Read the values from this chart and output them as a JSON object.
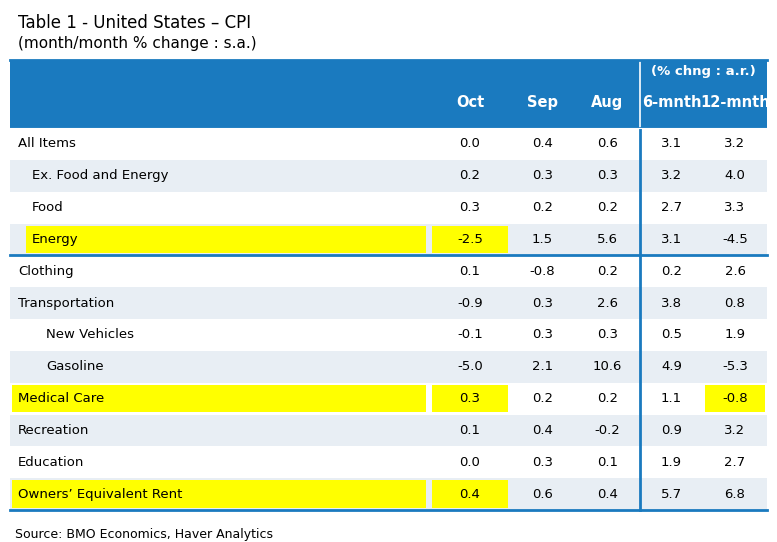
{
  "title_line1": "Table 1 - United States – CPI",
  "title_line2": "(month/month % change : s.a.)",
  "source": "Source: BMO Economics, Haver Analytics",
  "header_bg": "#1a7abf",
  "subheader_text": "(% chng : a.r.)",
  "col_headers": [
    "Oct",
    "Sep",
    "Aug",
    "6-mnth",
    "12-mnth"
  ],
  "rows": [
    {
      "label": "All Items",
      "indent": 0,
      "values": [
        "0.0",
        "0.4",
        "0.6",
        "3.1",
        "3.2"
      ],
      "highlight_label": false,
      "highlight_cells": []
    },
    {
      "label": "Ex. Food and Energy",
      "indent": 1,
      "values": [
        "0.2",
        "0.3",
        "0.3",
        "3.2",
        "4.0"
      ],
      "highlight_label": false,
      "highlight_cells": []
    },
    {
      "label": "Food",
      "indent": 1,
      "values": [
        "0.3",
        "0.2",
        "0.2",
        "2.7",
        "3.3"
      ],
      "highlight_label": false,
      "highlight_cells": []
    },
    {
      "label": "Energy",
      "indent": 1,
      "values": [
        "-2.5",
        "1.5",
        "5.6",
        "3.1",
        "-4.5"
      ],
      "highlight_label": true,
      "highlight_cells": [
        0
      ]
    },
    {
      "label": "Clothing",
      "indent": 0,
      "values": [
        "0.1",
        "-0.8",
        "0.2",
        "0.2",
        "2.6"
      ],
      "highlight_label": false,
      "highlight_cells": []
    },
    {
      "label": "Transportation",
      "indent": 0,
      "values": [
        "-0.9",
        "0.3",
        "2.6",
        "3.8",
        "0.8"
      ],
      "highlight_label": false,
      "highlight_cells": []
    },
    {
      "label": "New Vehicles",
      "indent": 2,
      "values": [
        "-0.1",
        "0.3",
        "0.3",
        "0.5",
        "1.9"
      ],
      "highlight_label": false,
      "highlight_cells": []
    },
    {
      "label": "Gasoline",
      "indent": 2,
      "values": [
        "-5.0",
        "2.1",
        "10.6",
        "4.9",
        "-5.3"
      ],
      "highlight_label": false,
      "highlight_cells": []
    },
    {
      "label": "Medical Care",
      "indent": 0,
      "values": [
        "0.3",
        "0.2",
        "0.2",
        "1.1",
        "-0.8"
      ],
      "highlight_label": true,
      "highlight_cells": [
        0,
        4
      ]
    },
    {
      "label": "Recreation",
      "indent": 0,
      "values": [
        "0.1",
        "0.4",
        "-0.2",
        "0.9",
        "3.2"
      ],
      "highlight_label": false,
      "highlight_cells": []
    },
    {
      "label": "Education",
      "indent": 0,
      "values": [
        "0.0",
        "0.3",
        "0.1",
        "1.9",
        "2.7"
      ],
      "highlight_label": false,
      "highlight_cells": []
    },
    {
      "label": "Owners’ Equivalent Rent",
      "indent": 0,
      "values": [
        "0.4",
        "0.6",
        "0.4",
        "5.7",
        "6.8"
      ],
      "highlight_label": true,
      "highlight_cells": [
        0
      ]
    }
  ],
  "divider_after_row": 3,
  "highlight_color": "#ffff00",
  "border_color": "#1a7abf",
  "row_colors": [
    "#ffffff",
    "#e8eef4",
    "#ffffff",
    "#e8eef4",
    "#ffffff",
    "#e8eef4",
    "#ffffff",
    "#e8eef4",
    "#ffffff",
    "#e8eef4",
    "#ffffff",
    "#e8eef4"
  ]
}
